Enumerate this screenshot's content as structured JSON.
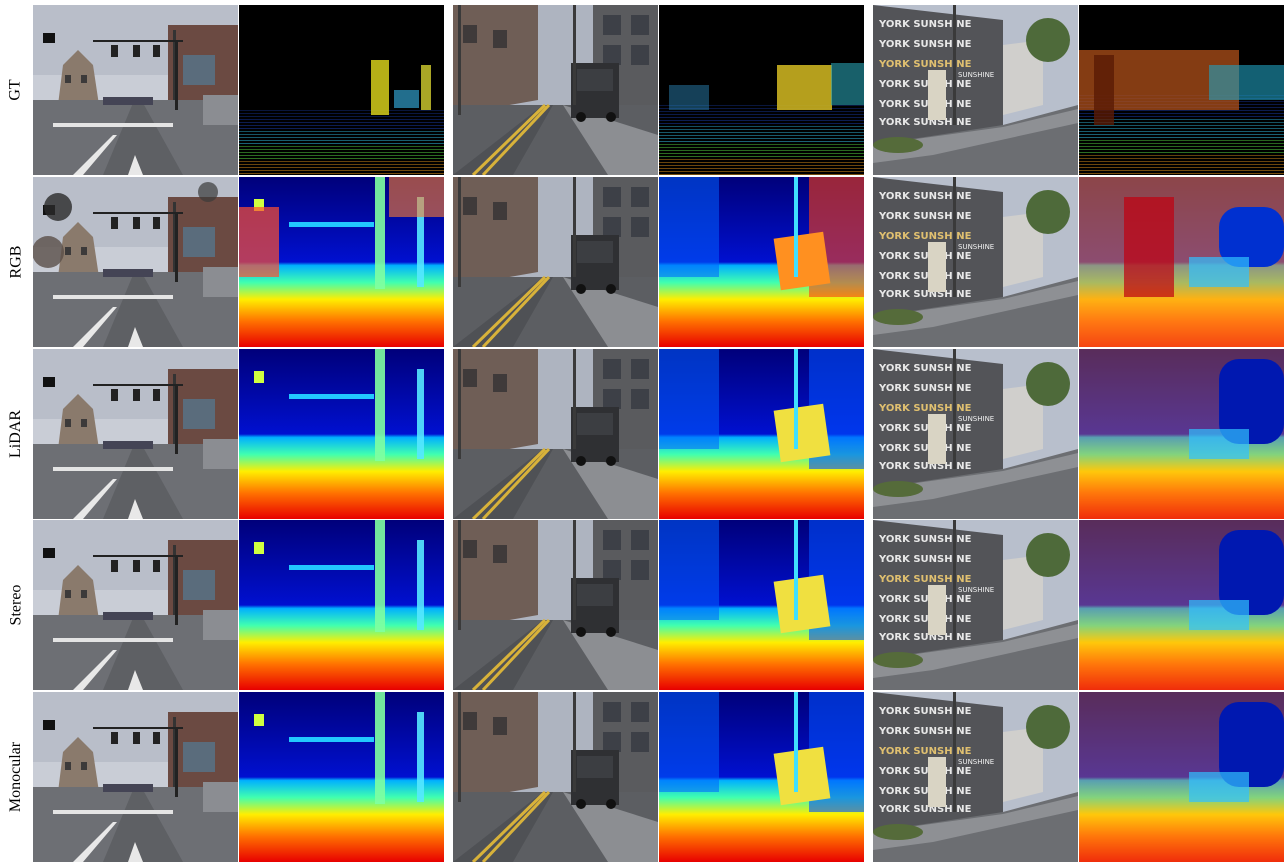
{
  "rows": [
    {
      "id": "gt",
      "label": "GT"
    },
    {
      "id": "rgb",
      "label": "RGB"
    },
    {
      "id": "lidar",
      "label": "LiDAR"
    },
    {
      "id": "stereo",
      "label": "Stereo"
    },
    {
      "id": "monocular",
      "label": "Monocular"
    }
  ],
  "scenes": [
    {
      "id": "scene-1",
      "description_icon": "intersection-street"
    },
    {
      "id": "scene-2",
      "description_icon": "truck-street"
    },
    {
      "id": "scene-3",
      "description_icon": "sunshine-building"
    }
  ],
  "scene3_mural_text": "YORK SUNSHINE",
  "scene3_sign_text": "SUNSHINE",
  "colormap": "jet"
}
